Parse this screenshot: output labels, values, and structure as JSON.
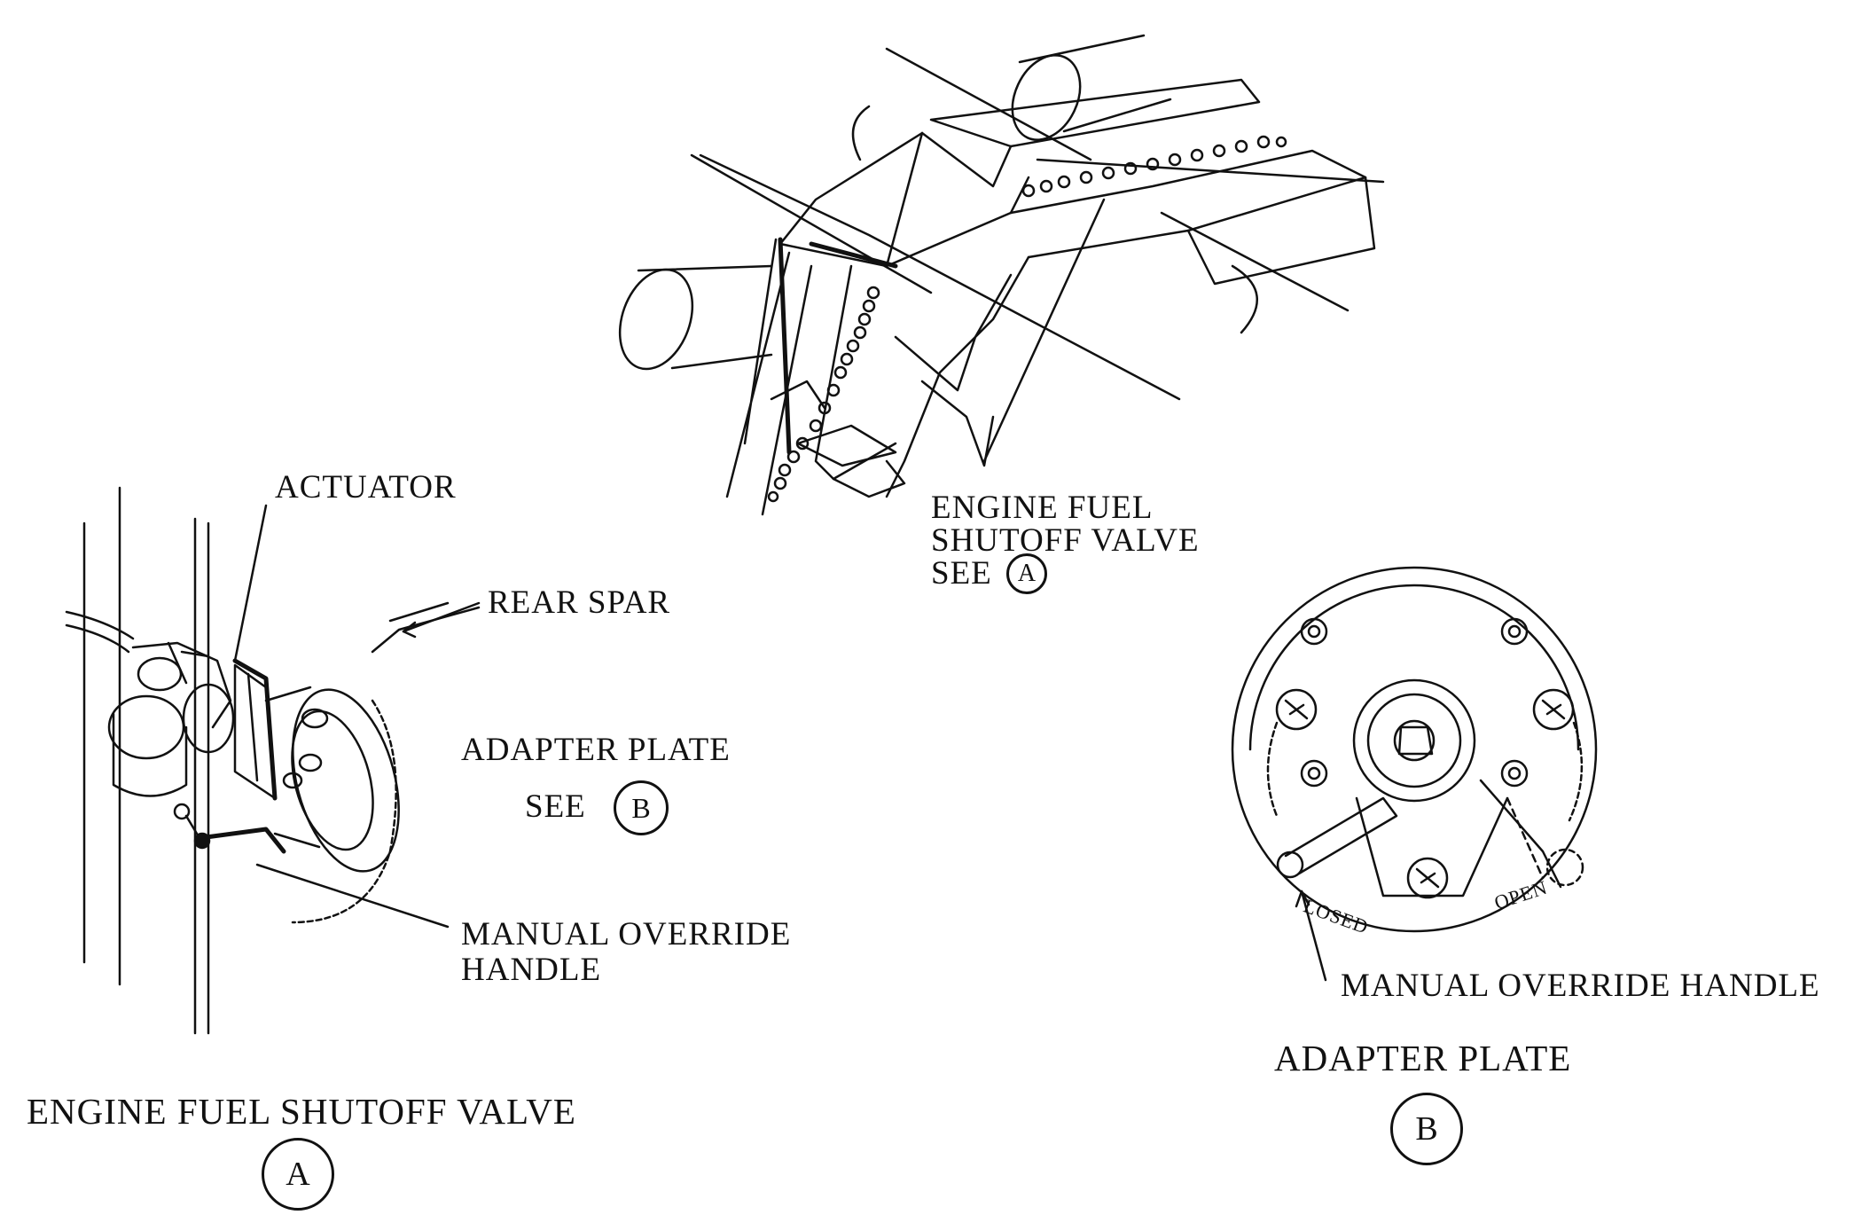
{
  "overview": {
    "callout_lines": [
      "ENGINE FUEL",
      "SHUTOFF VALVE"
    ],
    "see_text": "SEE",
    "see_ref": "A"
  },
  "detail_a": {
    "labels": {
      "actuator": "ACTUATOR",
      "rear_spar": "REAR SPAR",
      "adapter_plate": "ADAPTER PLATE",
      "see_text": "SEE",
      "see_ref": "B",
      "manual_override_1": "MANUAL OVERRIDE",
      "manual_override_2": "HANDLE"
    },
    "caption": "ENGINE FUEL SHUTOFF VALVE",
    "ref": "A"
  },
  "detail_b": {
    "labels": {
      "closed": "LOSED",
      "open": "OPEN",
      "manual_override": "MANUAL OVERRIDE HANDLE"
    },
    "caption": "ADAPTER PLATE",
    "ref": "B"
  },
  "colors": {
    "ink": "#111111",
    "paper": "#ffffff"
  }
}
